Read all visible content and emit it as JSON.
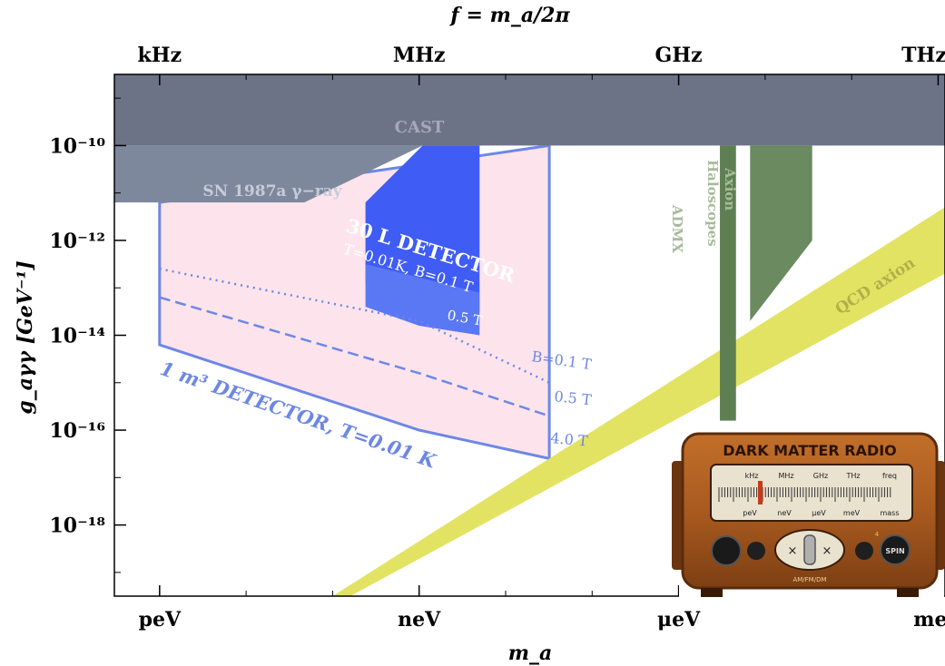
{
  "chart_data": {
    "type": "area",
    "title": "",
    "top_axis_title": "f = m_a/2π",
    "xlabel": "m_a",
    "ylabel": "g_aγγ [GeV⁻¹]",
    "x_scale": "log",
    "y_scale": "log",
    "x_unit": "eV",
    "xlim": [
      3e-13,
      0.0012
    ],
    "ylim_exponent": [
      -19.5,
      -8.5
    ],
    "x_ticks": [
      {
        "label": "peV",
        "value": 1e-12
      },
      {
        "label": "neV",
        "value": 1e-09
      },
      {
        "label": "μeV",
        "value": 1e-06
      },
      {
        "label": "meV",
        "value": 0.001
      }
    ],
    "top_ticks": [
      {
        "label": "kHz",
        "mass_eV": 1e-12
      },
      {
        "label": "MHz",
        "mass_eV": 1e-09
      },
      {
        "label": "GHz",
        "mass_eV": 1e-06
      },
      {
        "label": "THz",
        "mass_eV": 0.001
      }
    ],
    "y_ticks": [
      {
        "label": "10⁻¹⁰",
        "exponent": -10
      },
      {
        "label": "10⁻¹²",
        "exponent": -12
      },
      {
        "label": "10⁻¹⁴",
        "exponent": -14
      },
      {
        "label": "10⁻¹⁶",
        "exponent": -16
      },
      {
        "label": "10⁻¹⁸",
        "exponent": -18
      }
    ],
    "regions": [
      {
        "name": "CAST",
        "kind": "exclusion",
        "color": "#6c7387",
        "x": [
          3e-13,
          0.0012
        ],
        "y_exp": [
          -10.0,
          -8.5
        ]
      },
      {
        "name": "SN 1987a γ−ray",
        "kind": "exclusion",
        "color": "#7e889d",
        "polygon": [
          [
            3e-13,
            -11.2
          ],
          [
            4.7e-11,
            -11.2
          ],
          [
            1.1e-09,
            -10.0
          ],
          [
            3e-13,
            -10.0
          ]
        ]
      },
      {
        "name": "ADMX",
        "kind": "exclusion",
        "color": "#5e7f52",
        "x": [
          3e-06,
          4.6e-06
        ],
        "y_exp": [
          -15.8,
          -10.0
        ]
      },
      {
        "name": "Axion Haloscopes",
        "kind": "exclusion",
        "color": "#6b8a5f",
        "polygon": [
          [
            6.7e-06,
            -10.0
          ],
          [
            3.5e-05,
            -10.0
          ],
          [
            3.5e-05,
            -12.0
          ],
          [
            6.7e-06,
            -13.7
          ]
        ]
      },
      {
        "name": "QCD axion",
        "kind": "band",
        "color": "#e2e363"
      },
      {
        "name": "1 m³ DETECTOR, T=0.01 K",
        "kind": "projection",
        "fill": "#fde4ec",
        "stroke": "#6d87e6",
        "polygon": [
          [
            1e-12,
            -11.2
          ],
          [
            3.2e-08,
            -10.0
          ],
          [
            3.2e-08,
            -16.6
          ],
          [
            1e-09,
            -16.0
          ],
          [
            1e-12,
            -14.2
          ]
        ]
      },
      {
        "name": "30 L DETECTOR T=0.01K, B=0.1 T",
        "kind": "projection",
        "color": "#3f5cf5",
        "polygon": [
          [
            2.4e-10,
            -11.2
          ],
          [
            1.1e-09,
            -10.0
          ],
          [
            5e-09,
            -10.0
          ],
          [
            5e-09,
            -13.5
          ],
          [
            2.4e-10,
            -12.9
          ]
        ]
      },
      {
        "name": "30 L DETECTOR 0.5 T",
        "kind": "projection",
        "color": "#5a78f4",
        "polygon": [
          [
            2.4e-10,
            -12.5
          ],
          [
            5e-09,
            -13.1
          ],
          [
            5e-09,
            -14.0
          ],
          [
            1e-09,
            -13.8
          ],
          [
            2.4e-10,
            -13.4
          ]
        ]
      }
    ],
    "series": [
      {
        "name": "B=0.1 T",
        "style": "dotted",
        "points": [
          [
            1e-12,
            -12.6
          ],
          [
            1e-09,
            -13.7
          ],
          [
            3.2e-08,
            -15.0
          ]
        ]
      },
      {
        "name": "0.5 T",
        "style": "dashed",
        "points": [
          [
            1e-12,
            -13.2
          ],
          [
            1e-09,
            -14.8
          ],
          [
            3.2e-08,
            -15.7
          ]
        ]
      },
      {
        "name": "4.0 T",
        "style": "solid",
        "points": [
          [
            1e-12,
            -14.2
          ],
          [
            1e-09,
            -16.0
          ],
          [
            3.2e-08,
            -16.6
          ]
        ]
      }
    ],
    "annotations": {
      "cast": "CAST",
      "sn": "SN 1987a γ−ray",
      "admx": "ADMX",
      "haloscopes_1": "Axion",
      "haloscopes_2": "Haloscopes",
      "qcd": "QCD axion",
      "det30_1": "30 L DETECTOR",
      "det30_2": "T=0.01K, B=0.1 T",
      "det30_3": "0.5 T",
      "line_b01": "B=0.1 T",
      "line_05": "0.5 T",
      "line_40": "4.0 T",
      "det1m3": "1 m³ DETECTOR, T=0.01 K"
    },
    "logo": {
      "title": "DARK MATTER RADIO",
      "band_top": [
        "kHz",
        "MHz",
        "GHz",
        "THz",
        "freq"
      ],
      "band_bottom": [
        "peV",
        "neV",
        "μeV",
        "meV",
        "mass"
      ],
      "knob_label": "SPIN",
      "knob_number": "4",
      "footer": "AM/FM/DM"
    },
    "colors": {
      "cast": "#6c7387",
      "sn": "#7e889d",
      "admx": "#5e7f52",
      "halo": "#6b8a5f",
      "qcd": "#e2e363",
      "det_outline": "#6d87e6",
      "det_fill": "#fde4ec",
      "det30": "#3f5cf5",
      "det30_light": "#5a78f4"
    }
  }
}
